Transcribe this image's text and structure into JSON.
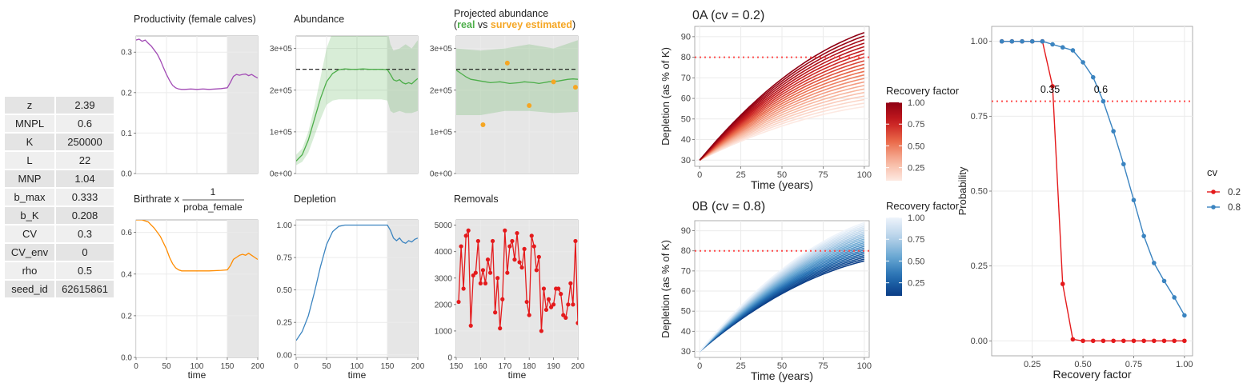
{
  "params": [
    {
      "name": "z",
      "value": "2.39"
    },
    {
      "name": "MNPL",
      "value": "0.6"
    },
    {
      "name": "K",
      "value": "250000"
    },
    {
      "name": "L",
      "value": "22"
    },
    {
      "name": "MNP",
      "value": "1.04"
    },
    {
      "name": "b_max",
      "value": "0.333"
    },
    {
      "name": "b_K",
      "value": "0.208"
    },
    {
      "name": "CV",
      "value": "0.3"
    },
    {
      "name": "CV_env",
      "value": "0"
    },
    {
      "name": "rho",
      "value": "0.5"
    },
    {
      "name": "seed_id",
      "value": "62615861"
    }
  ],
  "colors": {
    "purple": "#a24bb5",
    "green": "#4dae4a",
    "orange": "#ff8c00",
    "blue": "#3b84c0",
    "red": "#e41a1c",
    "survey": "#f5a623",
    "ref_red": "#ff4d4d",
    "grid": "#ebebeb",
    "shade": "#e6e6e6"
  },
  "chart_data": [
    {
      "id": "productivity",
      "type": "line",
      "title": "Productivity (female calves)",
      "xlabel": "",
      "ylabel": "",
      "xlim": [
        0,
        200
      ],
      "ylim": [
        0,
        0.34
      ],
      "xticks": [
        0,
        50,
        100,
        150,
        200
      ],
      "show_xticks": false,
      "yticks": [
        0,
        0.1,
        0.2,
        0.3
      ],
      "ytick_labels": [
        "0.0",
        "0.1",
        "0.2",
        "0.3"
      ],
      "shade_from": 150,
      "color": "purple",
      "series": [
        {
          "x": [
            0,
            5,
            10,
            15,
            20,
            25,
            30,
            35,
            40,
            45,
            50,
            55,
            60,
            65,
            70,
            75,
            80,
            90,
            100,
            110,
            120,
            130,
            140,
            150,
            155,
            160,
            165,
            170,
            175,
            180,
            185,
            190,
            195,
            200
          ],
          "y": [
            0.33,
            0.332,
            0.327,
            0.33,
            0.322,
            0.315,
            0.305,
            0.295,
            0.28,
            0.262,
            0.245,
            0.23,
            0.218,
            0.212,
            0.209,
            0.208,
            0.208,
            0.209,
            0.208,
            0.209,
            0.208,
            0.209,
            0.21,
            0.212,
            0.225,
            0.24,
            0.245,
            0.243,
            0.245,
            0.246,
            0.242,
            0.245,
            0.24,
            0.236
          ]
        }
      ]
    },
    {
      "id": "abundance",
      "type": "line",
      "title": "Abundance",
      "xlabel": "",
      "ylabel": "",
      "xlim": [
        0,
        200
      ],
      "ylim": [
        0,
        330000
      ],
      "xticks": [
        0,
        50,
        100,
        150,
        200
      ],
      "show_xticks": false,
      "yticks": [
        0,
        100000,
        200000,
        300000
      ],
      "ytick_labels": [
        "0e+00",
        "1e+05",
        "2e+05",
        "3e+05"
      ],
      "shade_from": 150,
      "hline": 250000,
      "color": "green",
      "band": {
        "x": [
          0,
          10,
          20,
          30,
          40,
          50,
          60,
          70,
          80,
          100,
          120,
          140,
          150,
          155,
          160,
          170,
          180,
          190,
          200
        ],
        "lo": [
          20000,
          28000,
          50000,
          90000,
          130000,
          165000,
          175000,
          178000,
          178000,
          178000,
          178000,
          178000,
          175000,
          150000,
          145000,
          150000,
          145000,
          145000,
          150000
        ],
        "hi": [
          45000,
          60000,
          100000,
          160000,
          230000,
          300000,
          340000,
          345000,
          345000,
          345000,
          345000,
          345000,
          345000,
          310000,
          295000,
          300000,
          310000,
          300000,
          320000
        ]
      },
      "series": [
        {
          "x": [
            0,
            10,
            20,
            30,
            40,
            50,
            60,
            70,
            80,
            90,
            100,
            110,
            120,
            130,
            140,
            150,
            155,
            160,
            165,
            170,
            175,
            180,
            185,
            190,
            195,
            200
          ],
          "y": [
            30000,
            45000,
            80000,
            130000,
            180000,
            220000,
            240000,
            249000,
            251000,
            250000,
            250000,
            251000,
            250000,
            250000,
            250000,
            249000,
            238000,
            225000,
            222000,
            225000,
            218000,
            215000,
            218000,
            215000,
            222000,
            228000
          ]
        }
      ]
    },
    {
      "id": "projected",
      "type": "line",
      "title": "Projected abundance",
      "subtitle": [
        "(",
        "real",
        " vs ",
        "survey estimated",
        ")"
      ],
      "xlabel": "",
      "ylabel": "",
      "xlim": [
        150,
        200
      ],
      "ylim": [
        0,
        330000
      ],
      "xticks": [
        150,
        160,
        170,
        180,
        190,
        200
      ],
      "show_xticks": false,
      "yticks": [
        0,
        100000,
        200000,
        300000
      ],
      "ytick_labels": [
        "0e+00",
        "1e+05",
        "2e+05",
        "3e+05"
      ],
      "shade_from": 150,
      "hline": 250000,
      "color": "green",
      "band": {
        "x": [
          150,
          160,
          170,
          180,
          190,
          200
        ],
        "lo": [
          140000,
          140000,
          150000,
          150000,
          145000,
          148000
        ],
        "hi": [
          300000,
          295000,
          300000,
          310000,
          300000,
          320000
        ]
      },
      "series": [
        {
          "x": [
            150,
            152,
            154,
            156,
            158,
            160,
            162,
            164,
            166,
            168,
            170,
            172,
            174,
            176,
            178,
            180,
            182,
            184,
            186,
            188,
            190,
            192,
            194,
            196,
            198,
            200
          ],
          "y": [
            248000,
            240000,
            232000,
            226000,
            224000,
            222000,
            220000,
            218000,
            219000,
            220000,
            218000,
            216000,
            217000,
            218000,
            220000,
            219000,
            218000,
            216000,
            218000,
            220000,
            221000,
            222000,
            224000,
            226000,
            227000,
            226000
          ]
        }
      ],
      "points": {
        "x": [
          161,
          171,
          180,
          190,
          199
        ],
        "y": [
          117000,
          265000,
          163000,
          220000,
          207000
        ]
      }
    },
    {
      "id": "birthrate",
      "type": "line",
      "title": "Birthrate x",
      "title_frac": [
        "1",
        "proba_female"
      ],
      "xlabel": "time",
      "ylabel": "",
      "xlim": [
        0,
        200
      ],
      "ylim": [
        0,
        0.66
      ],
      "xticks": [
        0,
        50,
        100,
        150,
        200
      ],
      "xtick_labels": [
        "0",
        "50",
        "100",
        "150",
        "200"
      ],
      "show_xticks": true,
      "yticks": [
        0,
        0.2,
        0.4,
        0.6
      ],
      "ytick_labels": [
        "0.0",
        "0.2",
        "0.4",
        "0.6"
      ],
      "shade_from": 150,
      "color": "orange",
      "series": [
        {
          "x": [
            0,
            10,
            20,
            30,
            40,
            50,
            55,
            60,
            65,
            70,
            75,
            80,
            90,
            100,
            120,
            140,
            150,
            155,
            160,
            165,
            170,
            175,
            180,
            185,
            190,
            195,
            200
          ],
          "y": [
            0.66,
            0.66,
            0.65,
            0.62,
            0.58,
            0.52,
            0.48,
            0.45,
            0.43,
            0.42,
            0.415,
            0.415,
            0.415,
            0.415,
            0.415,
            0.418,
            0.42,
            0.44,
            0.47,
            0.48,
            0.49,
            0.495,
            0.49,
            0.5,
            0.49,
            0.48,
            0.47
          ]
        }
      ]
    },
    {
      "id": "depletion",
      "type": "line",
      "title": "Depletion",
      "xlabel": "time",
      "ylabel": "",
      "xlim": [
        0,
        200
      ],
      "ylim": [
        -0.02,
        1.04
      ],
      "xticks": [
        0,
        50,
        100,
        150,
        200
      ],
      "xtick_labels": [
        "0",
        "50",
        "100",
        "150",
        "200"
      ],
      "show_xticks": true,
      "yticks": [
        0,
        0.25,
        0.5,
        0.75,
        1.0
      ],
      "ytick_labels": [
        "0.00",
        "0.25",
        "0.50",
        "0.75",
        "1.00"
      ],
      "shade_from": 150,
      "color": "blue",
      "series": [
        {
          "x": [
            0,
            10,
            20,
            30,
            40,
            50,
            60,
            70,
            80,
            90,
            100,
            110,
            120,
            130,
            140,
            150,
            155,
            160,
            165,
            170,
            175,
            180,
            185,
            190,
            195,
            200
          ],
          "y": [
            0.11,
            0.18,
            0.3,
            0.48,
            0.68,
            0.85,
            0.95,
            0.99,
            1.0,
            1.0,
            1.0,
            1.0,
            1.0,
            1.0,
            1.0,
            1.0,
            0.96,
            0.9,
            0.88,
            0.9,
            0.87,
            0.86,
            0.88,
            0.87,
            0.89,
            0.9
          ]
        }
      ]
    },
    {
      "id": "removals",
      "type": "line",
      "title": "Removals",
      "xlabel": "time",
      "ylabel": "",
      "xlim": [
        150,
        200
      ],
      "ylim": [
        0,
        5200
      ],
      "xticks": [
        150,
        160,
        170,
        180,
        190,
        200
      ],
      "xtick_labels": [
        "150",
        "160",
        "170",
        "180",
        "190",
        "200"
      ],
      "show_xticks": true,
      "yticks": [
        0,
        1000,
        2000,
        3000,
        4000,
        5000
      ],
      "ytick_labels": [
        "0",
        "1000",
        "2000",
        "3000",
        "4000",
        "5000"
      ],
      "shade_from": 150,
      "color": "red",
      "series": [
        {
          "x": [
            151,
            152,
            153,
            154,
            155,
            156,
            157,
            158,
            159,
            160,
            161,
            162,
            163,
            164,
            165,
            166,
            167,
            168,
            169,
            170,
            171,
            172,
            173,
            174,
            175,
            176,
            177,
            178,
            179,
            180,
            181,
            182,
            183,
            184,
            185,
            186,
            187,
            188,
            189,
            190,
            191,
            192,
            193,
            194,
            195,
            196,
            197,
            198,
            199,
            200
          ],
          "y": [
            2100,
            4200,
            2600,
            4600,
            4800,
            1200,
            3100,
            3200,
            4400,
            2800,
            3300,
            2800,
            3700,
            3200,
            4400,
            1700,
            3000,
            1100,
            2200,
            4800,
            3200,
            4200,
            4400,
            3700,
            4700,
            3600,
            3400,
            4100,
            2100,
            1600,
            4600,
            4200,
            3300,
            3800,
            1000,
            2600,
            1800,
            2200,
            1900,
            2000,
            2600,
            2600,
            2400,
            1600,
            1500,
            2000,
            2800,
            2000,
            4400,
            1300
          ]
        }
      ],
      "points_on_line": true
    },
    {
      "id": "fig0A",
      "type": "line",
      "title": "0A (cv = 0.2)",
      "xlabel": "Time (years)",
      "ylabel": "Depletion (as % of K)",
      "xlim": [
        -3,
        103
      ],
      "ylim": [
        27,
        95
      ],
      "xticks": [
        0,
        25,
        50,
        75,
        100
      ],
      "xtick_labels": [
        "0",
        "25",
        "50",
        "75",
        "100"
      ],
      "show_xticks": true,
      "yticks": [
        30,
        40,
        50,
        60,
        70,
        80,
        90
      ],
      "ytick_labels": [
        "30",
        "40",
        "50",
        "60",
        "70",
        "80",
        "90"
      ],
      "hline": 80,
      "family": {
        "count": 22,
        "x_end": 100,
        "y_start": 30,
        "end_min": 56,
        "end_max": 92,
        "palette": "reds"
      },
      "legend": {
        "title": "Recovery factor",
        "ticks": [
          "1.00",
          "0.75",
          "0.50",
          "0.25"
        ]
      }
    },
    {
      "id": "fig0B",
      "type": "line",
      "title": "0B (cv = 0.8)",
      "xlabel": "Time (years)",
      "ylabel": "Depletion (as % of K)",
      "xlim": [
        -3,
        103
      ],
      "ylim": [
        27,
        95
      ],
      "xticks": [
        0,
        25,
        50,
        75,
        100
      ],
      "xtick_labels": [
        "0",
        "25",
        "50",
        "75",
        "100"
      ],
      "show_xticks": true,
      "yticks": [
        30,
        40,
        50,
        60,
        70,
        80,
        90
      ],
      "ytick_labels": [
        "30",
        "40",
        "50",
        "60",
        "70",
        "80",
        "90"
      ],
      "hline": 80,
      "family": {
        "count": 22,
        "x_end": 100,
        "y_start": 30,
        "end_min": 75,
        "end_max": 94,
        "palette": "blues"
      },
      "legend": {
        "title": "Recovery factor",
        "ticks": [
          "1.00",
          "0.75",
          "0.50",
          "0.25"
        ]
      }
    },
    {
      "id": "probability",
      "type": "line",
      "title": "",
      "xlabel": "Recovery factor",
      "ylabel": "Probability",
      "xlim": [
        0.05,
        1.04
      ],
      "ylim": [
        -0.05,
        1.05
      ],
      "xticks": [
        0.25,
        0.5,
        0.75,
        1.0
      ],
      "xtick_labels": [
        "0.25",
        "0.50",
        "0.75",
        "1.00"
      ],
      "show_xticks": true,
      "yticks": [
        0,
        0.25,
        0.5,
        0.75,
        1.0
      ],
      "ytick_labels": [
        "0.00",
        "0.25",
        "0.50",
        "0.75",
        "1.00"
      ],
      "hline": 0.8,
      "categories": [
        0.1,
        0.15,
        0.2,
        0.25,
        0.3,
        0.35,
        0.4,
        0.45,
        0.5,
        0.55,
        0.6,
        0.65,
        0.7,
        0.75,
        0.8,
        0.85,
        0.9,
        0.95,
        1.0
      ],
      "series": [
        {
          "name": "0.2",
          "color": "#e41a1c",
          "values": [
            1,
            1,
            1,
            1,
            1,
            0.85,
            0.19,
            0.005,
            0,
            0,
            0,
            0,
            0,
            0,
            0,
            0,
            0,
            0,
            0
          ]
        },
        {
          "name": "0.8",
          "color": "#3b84c0",
          "values": [
            1,
            1,
            1,
            1,
            1,
            0.99,
            0.98,
            0.97,
            0.93,
            0.88,
            0.8,
            0.7,
            0.59,
            0.47,
            0.35,
            0.26,
            0.2,
            0.145,
            0.085
          ]
        }
      ],
      "annotations": [
        {
          "text": "0.35",
          "x": 0.35,
          "y": 0.82
        },
        {
          "text": "0.6",
          "x": 0.6,
          "y": 0.82
        }
      ],
      "legend": {
        "title": "cv"
      }
    }
  ]
}
